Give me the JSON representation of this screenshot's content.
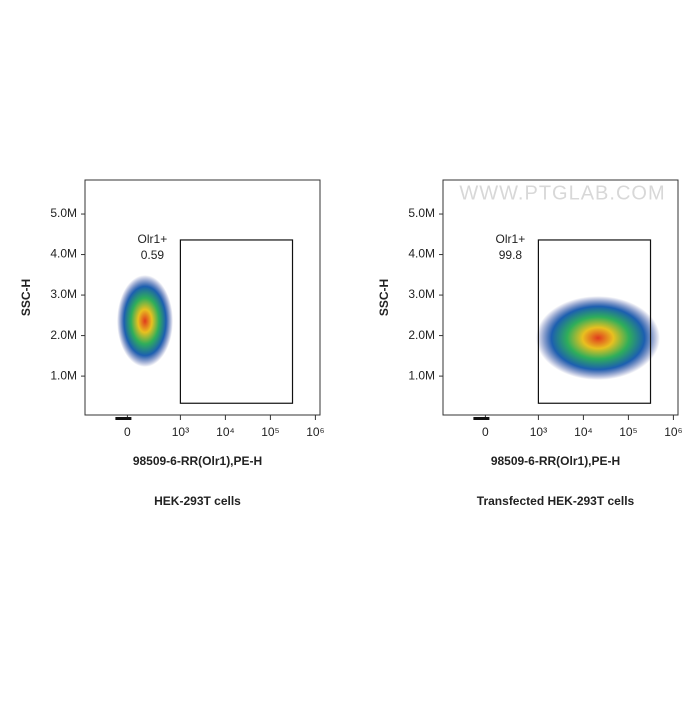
{
  "chart_data": [
    {
      "type": "scatter",
      "ylabel": "SSC-H",
      "xlabel": "98509-6-RR(Olr1),PE-H",
      "caption": "HEK-293T cells",
      "xlim": [
        -800,
        1290000
      ],
      "ylim": [
        40000,
        5840000
      ],
      "xticks": [
        {
          "value": 0,
          "label": "0"
        },
        {
          "value": 1000,
          "label": "10³"
        },
        {
          "value": 10000,
          "label": "10⁴"
        },
        {
          "value": 100000,
          "label": "10⁵"
        },
        {
          "value": 1000000,
          "label": "10⁶"
        }
      ],
      "yticks": [
        {
          "value": 1000000,
          "label": "1.0M"
        },
        {
          "value": 2000000,
          "label": "2.0M"
        },
        {
          "value": 3000000,
          "label": "3.0M"
        },
        {
          "value": 4000000,
          "label": "4.0M"
        },
        {
          "value": 5000000,
          "label": "5.0M"
        }
      ],
      "gate": {
        "name": "Olr1+",
        "value": 0.59,
        "x": [
          1000,
          310000
        ],
        "y": [
          330000,
          4360000
        ]
      }
    },
    {
      "type": "scatter",
      "ylabel": "SSC-H",
      "xlabel": "98509-6-RR(Olr1),PE-H",
      "caption": "Transfected HEK-293T cells",
      "watermark": "WWW.PTGLAB.COM",
      "xlim": [
        -800,
        1290000
      ],
      "ylim": [
        40000,
        5840000
      ],
      "xticks": [
        {
          "value": 0,
          "label": "0"
        },
        {
          "value": 1000,
          "label": "10³"
        },
        {
          "value": 10000,
          "label": "10⁴"
        },
        {
          "value": 100000,
          "label": "10⁵"
        },
        {
          "value": 1000000,
          "label": "10⁶"
        }
      ],
      "yticks": [
        {
          "value": 1000000,
          "label": "1.0M"
        },
        {
          "value": 2000000,
          "label": "2.0M"
        },
        {
          "value": 3000000,
          "label": "3.0M"
        },
        {
          "value": 4000000,
          "label": "4.0M"
        },
        {
          "value": 5000000,
          "label": "5.0M"
        }
      ],
      "gate": {
        "name": "Olr1+",
        "value": 99.8,
        "x": [
          1000,
          310000
        ],
        "y": [
          330000,
          4360000
        ]
      }
    }
  ]
}
